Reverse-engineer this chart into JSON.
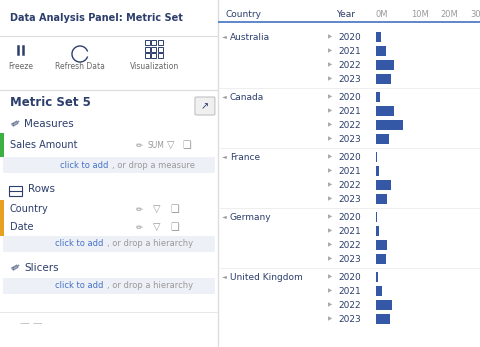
{
  "left_panel": {
    "title": "Data Analysis Panel: Metric Set",
    "toolbar_labels": [
      "Freeze",
      "Refresh Data",
      "Visualization"
    ],
    "section_title": "Metric Set 5",
    "measures_label": "Measures",
    "measure_name": "Sales Amount",
    "measures_add": "click to add, or drop a measure",
    "rows_label": "Rows",
    "rows_items": [
      "Country",
      "Date"
    ],
    "rows_add": "click to add, or drop a hierarchy",
    "slicers_label": "Slicers",
    "slicers_add": "click to add, or drop a hierarchy"
  },
  "right_panel": {
    "countries": [
      "Australia",
      "Canada",
      "France",
      "Germany",
      "United Kingdom"
    ],
    "years": [
      2020,
      2021,
      2022,
      2023
    ],
    "bar_color": "#3457a6",
    "data": {
      "Australia": {
        "2020": 1.5,
        "2021": 3.0,
        "2022": 5.5,
        "2023": 4.5
      },
      "Canada": {
        "2020": 1.2,
        "2021": 5.5,
        "2022": 8.5,
        "2023": 4.0
      },
      "France": {
        "2020": 0.3,
        "2021": 0.9,
        "2022": 4.5,
        "2023": 3.5
      },
      "Germany": {
        "2020": 0.3,
        "2021": 1.0,
        "2022": 3.5,
        "2023": 3.2
      },
      "United Kingdom": {
        "2020": 0.5,
        "2021": 1.8,
        "2022": 5.0,
        "2023": 4.2
      }
    },
    "x_max": 30
  },
  "text_dark": "#2c3e6b",
  "text_mid": "#666666",
  "text_light": "#999999",
  "link_color": "#4472c4",
  "orange_accent": "#e8a020",
  "green_accent": "#3cb043",
  "panel_border": "#cccccc",
  "add_box_bg": "#eef0f8"
}
